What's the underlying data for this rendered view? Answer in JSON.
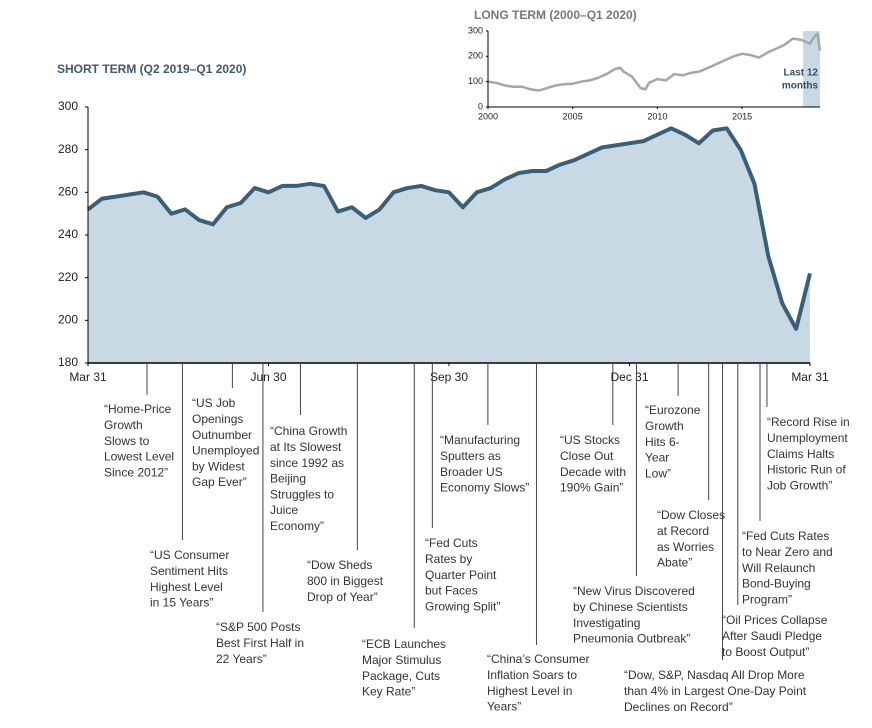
{
  "chart_data": [
    {
      "type": "area",
      "title": "SHORT TERM (Q2 2019–Q1 2020)",
      "x": [
        0,
        1,
        2,
        3,
        4,
        5,
        6,
        7,
        8,
        9,
        10,
        11,
        12,
        13,
        14,
        15,
        16,
        17,
        18,
        19,
        20,
        21,
        22,
        23,
        24,
        25,
        26,
        27,
        28,
        29,
        30,
        31,
        32,
        33,
        34,
        35,
        36,
        37,
        38,
        39,
        40,
        41,
        42,
        43,
        44,
        45,
        46,
        47,
        48,
        49,
        50,
        51,
        52
      ],
      "values": [
        252,
        257,
        258,
        259,
        260,
        258,
        250,
        252,
        247,
        245,
        253,
        255,
        262,
        260,
        263,
        263,
        264,
        263,
        251,
        253,
        248,
        252,
        260,
        262,
        263,
        261,
        260,
        253,
        260,
        262,
        266,
        269,
        270,
        270,
        273,
        275,
        278,
        281,
        282,
        283,
        284,
        287,
        290,
        287,
        283,
        289,
        290,
        280,
        264,
        230,
        208,
        196,
        222
      ],
      "color": "#3a5f78",
      "fill": "#c9d9e3",
      "xlim": [
        0,
        52
      ],
      "xticks": [
        {
          "value": 0,
          "label": "Mar 31"
        },
        {
          "value": 13,
          "label": "Jun 30"
        },
        {
          "value": 26,
          "label": "Sep 30"
        },
        {
          "value": 39,
          "label": "Dec 31"
        },
        {
          "value": 52,
          "label": "Mar 31"
        }
      ],
      "ylim": [
        180,
        300
      ],
      "yticks": [
        180,
        200,
        220,
        240,
        260,
        280,
        300
      ],
      "annotations": [
        {
          "x": 4.25,
          "lines": [
            "“Home-Price",
            "Growth",
            "Slows to",
            "Lowest Level",
            "Since 2012”"
          ]
        },
        {
          "x": 6.8,
          "lines": [
            "“US Consumer",
            "Sentiment Hits",
            "Highest Level",
            "in 15 Years”"
          ]
        },
        {
          "x": 10.4,
          "lines": [
            "“US Job",
            "Openings",
            "Outnumber",
            "Unemployed",
            "by Widest",
            "Gap Ever”"
          ]
        },
        {
          "x": 12.6,
          "lines": [
            "“S&P 500 Posts",
            "Best First Half in",
            "22 Years”"
          ]
        },
        {
          "x": 15.3,
          "lines": [
            "“China Growth",
            "at Its Slowest",
            "since 1992 as",
            "Beijing",
            "Struggles to",
            "Juice",
            "Economy”"
          ]
        },
        {
          "x": 19.4,
          "lines": [
            "“Dow Sheds",
            "800 in Biggest",
            "Drop of Year”"
          ]
        },
        {
          "x": 23.5,
          "lines": [
            "“ECB Launches",
            "Major Stimulus",
            "Package, Cuts",
            "Key Rate”"
          ]
        },
        {
          "x": 24.8,
          "lines": [
            "“Fed Cuts",
            "Rates by",
            "Quarter Point",
            "but Faces",
            "Growing Split”"
          ]
        },
        {
          "x": 28.8,
          "lines": [
            "“Manufacturing",
            "Sputters as",
            "Broader US",
            "Economy Slows”"
          ]
        },
        {
          "x": 32.3,
          "lines": [
            "“China’s Consumer",
            "Inflation Soars to",
            "Highest Level in",
            "Years”"
          ]
        },
        {
          "x": 37.8,
          "lines": [
            "“US Stocks",
            "Close Out",
            "Decade with",
            "190% Gain”"
          ]
        },
        {
          "x": 39.5,
          "lines": [
            "“New Virus Discovered",
            "by Chinese Scientists",
            "Investigating",
            "Pneumonia Outbreak”"
          ]
        },
        {
          "x": 42.5,
          "lines": [
            "“Eurozone",
            "Growth",
            "Hits 6-",
            "Year",
            "Low”"
          ]
        },
        {
          "x": 44.7,
          "lines": [
            "“Dow Closes",
            "at Record",
            "as Worries",
            "Abate”"
          ]
        },
        {
          "x": 45.7,
          "lines": [
            "“Dow, S&P, Nasdaq All Drop More",
            "than 4% in Largest One-Day Point",
            "Declines on Record”"
          ]
        },
        {
          "x": 46.8,
          "lines": [
            "“Oil Prices Collapse",
            "After Saudi Pledge",
            "to Boost Output”"
          ]
        },
        {
          "x": 48.4,
          "lines": [
            "“Fed Cuts Rates",
            "to Near Zero and",
            "Will Relaunch",
            "Bond-Buying",
            "Program”"
          ]
        },
        {
          "x": 48.9,
          "lines": [
            "“Record Rise in",
            "Unemployment",
            "Claims Halts",
            "Historic Run of",
            "Job Growth”"
          ]
        }
      ]
    },
    {
      "type": "line",
      "title": "LONG TERM (2000–Q1 2020)",
      "x": [
        2000,
        2000.5,
        2001,
        2001.5,
        2002,
        2002.5,
        2003,
        2003.5,
        2004,
        2004.5,
        2005,
        2005.5,
        2006,
        2006.5,
        2007,
        2007.5,
        2007.8,
        2008,
        2008.5,
        2009,
        2009.3,
        2009.5,
        2010,
        2010.5,
        2011,
        2011.5,
        2012,
        2012.5,
        2013,
        2013.5,
        2014,
        2014.5,
        2015,
        2015.5,
        2016,
        2016.5,
        2017,
        2017.5,
        2018,
        2018.5,
        2019,
        2019.3,
        2019.45,
        2019.6
      ],
      "values": [
        100,
        95,
        85,
        80,
        80,
        70,
        65,
        75,
        85,
        90,
        92,
        100,
        105,
        115,
        130,
        150,
        155,
        140,
        120,
        75,
        70,
        95,
        110,
        105,
        130,
        125,
        135,
        140,
        155,
        170,
        185,
        200,
        210,
        205,
        195,
        215,
        230,
        245,
        270,
        265,
        250,
        280,
        290,
        222
      ],
      "color": "#a6a6a6",
      "xlim": [
        2000,
        2019.6
      ],
      "xticks": [
        2000,
        2005,
        2010,
        2015
      ],
      "ylim": [
        0,
        300
      ],
      "yticks": [
        0,
        100,
        200,
        300
      ],
      "highlight": {
        "x": [
          2018.6,
          2019.6
        ],
        "label_lines": [
          "Last 12",
          "months"
        ],
        "color": "#c9d9e3"
      }
    }
  ]
}
